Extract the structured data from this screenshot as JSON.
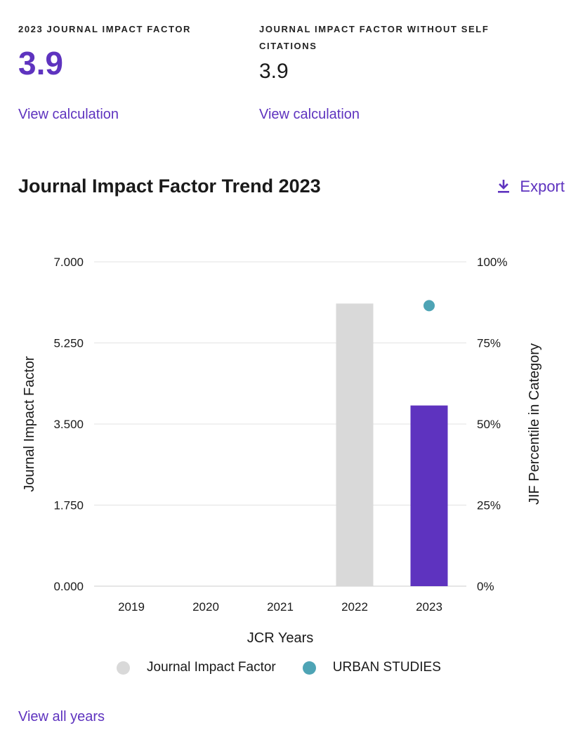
{
  "metrics": {
    "jif": {
      "label": "2023 JOURNAL IMPACT FACTOR",
      "value": "3.9",
      "link": "View calculation"
    },
    "jif_no_self": {
      "label": "JOURNAL IMPACT FACTOR WITHOUT SELF CITATIONS",
      "value": "3.9",
      "link": "View calculation"
    }
  },
  "section": {
    "title": "Journal Impact Factor Trend 2023",
    "export_label": "Export"
  },
  "colors": {
    "accent": "#5e33bf",
    "bar_gray": "#d9d9d9",
    "dot_teal": "#4ea4b5"
  },
  "chart_data": {
    "type": "bar",
    "categories": [
      "2019",
      "2020",
      "2021",
      "2022",
      "2023"
    ],
    "series": [
      {
        "name": "Journal Impact Factor",
        "values": [
          null,
          null,
          null,
          6.1,
          3.9
        ]
      },
      {
        "name": "URBAN STUDIES",
        "type": "scatter",
        "axis": "right",
        "values": [
          null,
          null,
          null,
          null,
          86.5
        ]
      }
    ],
    "xlabel": "JCR Years",
    "ylabel": "Journal Impact Factor",
    "y2label": "JIF Percentile in Category",
    "ylim": [
      0,
      7
    ],
    "y2lim": [
      0,
      100
    ],
    "yticks": [
      "0.000",
      "1.750",
      "3.500",
      "5.250",
      "7.000"
    ],
    "y2ticks": [
      "0%",
      "25%",
      "50%",
      "75%",
      "100%"
    ],
    "grid": true,
    "legend": "bottom"
  },
  "footer": {
    "view_all": "View all years"
  }
}
